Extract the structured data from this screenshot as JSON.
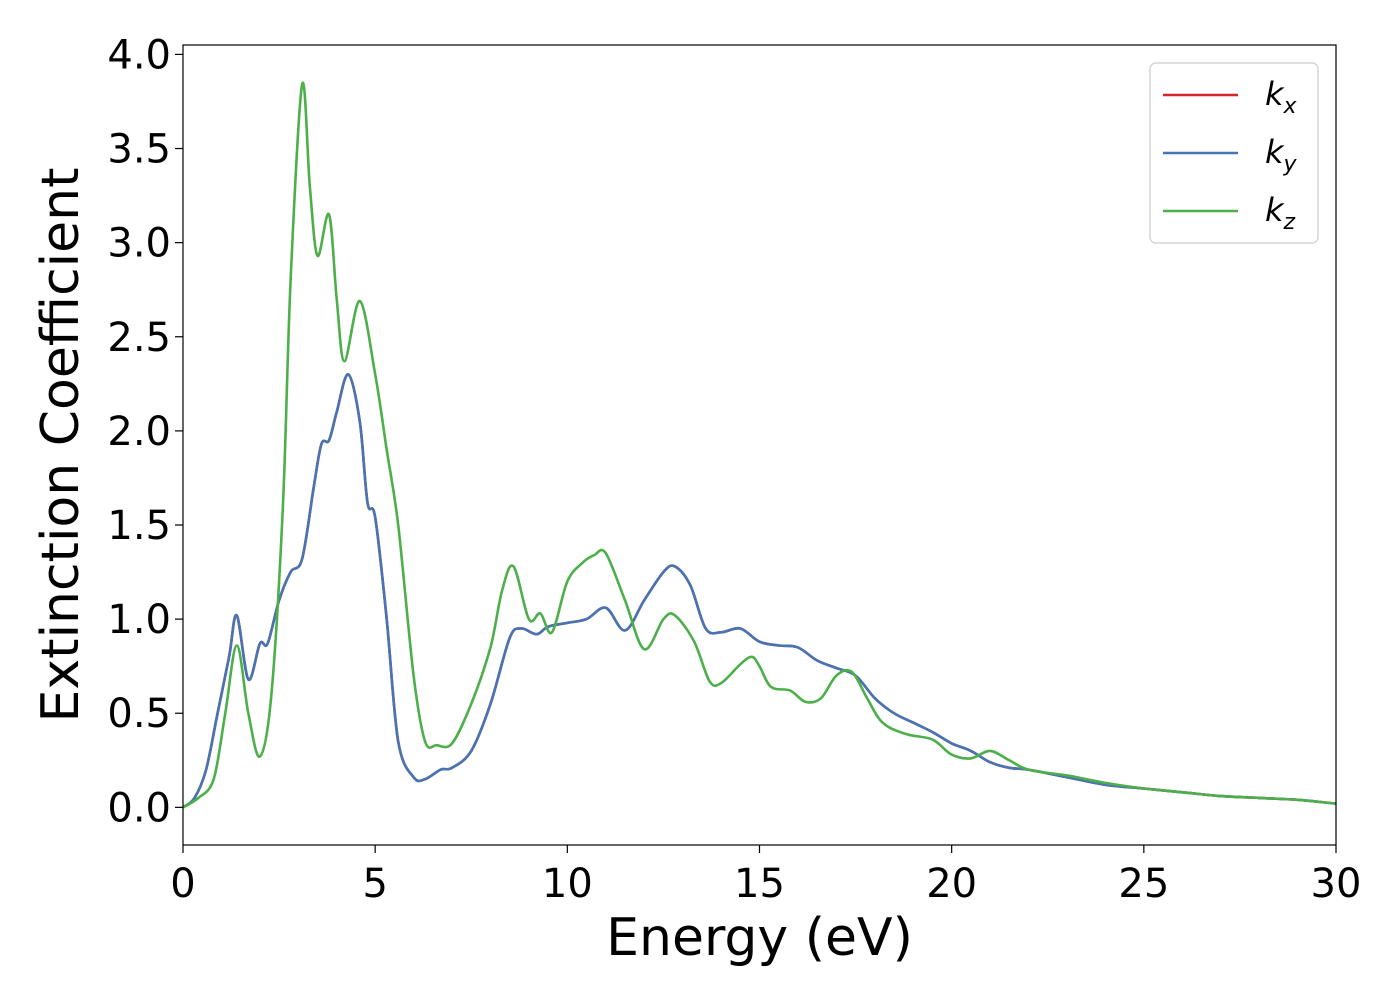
{
  "chart_data": {
    "type": "line",
    "title": "",
    "xlabel": "Energy (eV)",
    "ylabel": "Extinction Coefficient",
    "xlim": [
      0,
      30
    ],
    "ylim": [
      -0.2,
      4.05
    ],
    "xticks": [
      0,
      5,
      10,
      15,
      20,
      25,
      30
    ],
    "xtick_labels": [
      "0",
      "5",
      "10",
      "15",
      "20",
      "25",
      "30"
    ],
    "yticks": [
      0.0,
      0.5,
      1.0,
      1.5,
      2.0,
      2.5,
      3.0,
      3.5,
      4.0
    ],
    "ytick_labels": [
      "0.0",
      "0.5",
      "1.0",
      "1.5",
      "2.0",
      "2.5",
      "3.0",
      "3.5",
      "4.0"
    ],
    "grid": false,
    "legend_position": "top-right",
    "series": [
      {
        "name": "k_x",
        "label_main": "k",
        "label_sub": "x",
        "color": "#d62728",
        "x": [
          0,
          0.3,
          0.6,
          0.9,
          1.2,
          1.4,
          1.7,
          2.0,
          2.2,
          2.5,
          2.8,
          3.1,
          3.4,
          3.6,
          3.8,
          4.0,
          4.3,
          4.6,
          4.8,
          5.0,
          5.3,
          5.6,
          6.0,
          6.3,
          6.7,
          7.0,
          7.5,
          8.0,
          8.5,
          8.8,
          9.2,
          9.5,
          10.0,
          10.5,
          11.0,
          11.5,
          12.0,
          12.5,
          12.8,
          13.2,
          13.6,
          14.0,
          14.5,
          15.0,
          15.5,
          16.0,
          16.5,
          17.0,
          17.5,
          18.0,
          18.5,
          19.0,
          19.5,
          20.0,
          20.5,
          21.0,
          21.5,
          22.0,
          23.0,
          24.0,
          25.0,
          26.0,
          27.0,
          28.0,
          29.0,
          30.0
        ],
        "y": [
          0.0,
          0.05,
          0.2,
          0.5,
          0.8,
          1.02,
          0.68,
          0.87,
          0.87,
          1.1,
          1.25,
          1.32,
          1.7,
          1.93,
          1.95,
          2.1,
          2.3,
          2.05,
          1.62,
          1.54,
          1.0,
          0.35,
          0.16,
          0.15,
          0.2,
          0.21,
          0.3,
          0.55,
          0.9,
          0.95,
          0.92,
          0.96,
          0.98,
          1.0,
          1.06,
          0.94,
          1.1,
          1.25,
          1.28,
          1.18,
          0.95,
          0.93,
          0.95,
          0.88,
          0.86,
          0.85,
          0.78,
          0.74,
          0.7,
          0.58,
          0.5,
          0.45,
          0.4,
          0.34,
          0.3,
          0.24,
          0.21,
          0.2,
          0.16,
          0.12,
          0.1,
          0.08,
          0.06,
          0.05,
          0.04,
          0.02
        ]
      },
      {
        "name": "k_y",
        "label_main": "k",
        "label_sub": "y",
        "color": "#4575b4",
        "x": [
          0,
          0.3,
          0.6,
          0.9,
          1.2,
          1.4,
          1.7,
          2.0,
          2.2,
          2.5,
          2.8,
          3.1,
          3.4,
          3.6,
          3.8,
          4.0,
          4.3,
          4.6,
          4.8,
          5.0,
          5.3,
          5.6,
          6.0,
          6.3,
          6.7,
          7.0,
          7.5,
          8.0,
          8.5,
          8.8,
          9.2,
          9.5,
          10.0,
          10.5,
          11.0,
          11.5,
          12.0,
          12.5,
          12.8,
          13.2,
          13.6,
          14.0,
          14.5,
          15.0,
          15.5,
          16.0,
          16.5,
          17.0,
          17.5,
          18.0,
          18.5,
          19.0,
          19.5,
          20.0,
          20.5,
          21.0,
          21.5,
          22.0,
          23.0,
          24.0,
          25.0,
          26.0,
          27.0,
          28.0,
          29.0,
          30.0
        ],
        "y": [
          0.0,
          0.05,
          0.2,
          0.5,
          0.8,
          1.02,
          0.68,
          0.87,
          0.87,
          1.1,
          1.25,
          1.32,
          1.7,
          1.93,
          1.95,
          2.1,
          2.3,
          2.05,
          1.62,
          1.54,
          1.0,
          0.35,
          0.16,
          0.15,
          0.2,
          0.21,
          0.3,
          0.55,
          0.9,
          0.95,
          0.92,
          0.96,
          0.98,
          1.0,
          1.06,
          0.94,
          1.1,
          1.25,
          1.28,
          1.18,
          0.95,
          0.93,
          0.95,
          0.88,
          0.86,
          0.85,
          0.78,
          0.74,
          0.7,
          0.58,
          0.5,
          0.45,
          0.4,
          0.34,
          0.3,
          0.24,
          0.21,
          0.2,
          0.16,
          0.12,
          0.1,
          0.08,
          0.06,
          0.05,
          0.04,
          0.02
        ]
      },
      {
        "name": "k_z",
        "label_main": "k",
        "label_sub": "z",
        "color": "#4daf4a",
        "x": [
          0,
          0.4,
          0.8,
          1.1,
          1.4,
          1.7,
          2.0,
          2.3,
          2.6,
          2.8,
          3.1,
          3.3,
          3.5,
          3.8,
          4.0,
          4.2,
          4.6,
          5.0,
          5.3,
          5.6,
          6.0,
          6.3,
          6.6,
          7.0,
          7.5,
          8.0,
          8.3,
          8.6,
          9.0,
          9.3,
          9.6,
          10.0,
          10.4,
          10.7,
          11.0,
          11.5,
          12.0,
          12.5,
          12.8,
          13.3,
          13.7,
          14.0,
          14.5,
          14.8,
          15.0,
          15.3,
          15.8,
          16.2,
          16.6,
          17.0,
          17.4,
          17.8,
          18.2,
          18.8,
          19.5,
          20.0,
          20.5,
          21.0,
          21.5,
          22.0,
          23.0,
          23.5,
          24.0,
          25.0,
          26.0,
          27.0,
          28.0,
          29.0,
          30.0
        ],
        "y": [
          0.0,
          0.05,
          0.15,
          0.5,
          0.86,
          0.5,
          0.27,
          0.6,
          1.6,
          2.8,
          3.84,
          3.3,
          2.93,
          3.15,
          2.7,
          2.37,
          2.69,
          2.3,
          1.9,
          1.5,
          0.7,
          0.35,
          0.33,
          0.34,
          0.55,
          0.85,
          1.15,
          1.28,
          1.0,
          1.03,
          0.93,
          1.2,
          1.3,
          1.34,
          1.35,
          1.1,
          0.84,
          1.0,
          1.02,
          0.88,
          0.67,
          0.66,
          0.76,
          0.8,
          0.75,
          0.64,
          0.62,
          0.56,
          0.58,
          0.7,
          0.72,
          0.58,
          0.45,
          0.39,
          0.36,
          0.28,
          0.26,
          0.3,
          0.25,
          0.2,
          0.17,
          0.15,
          0.13,
          0.1,
          0.08,
          0.06,
          0.05,
          0.04,
          0.02
        ]
      }
    ]
  }
}
